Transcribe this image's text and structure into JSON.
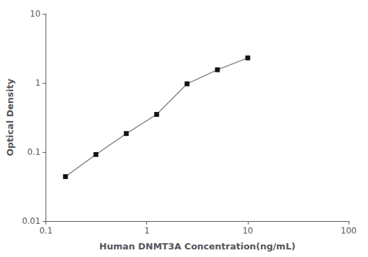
{
  "chart_data": {
    "type": "line",
    "x": [
      0.156,
      0.3125,
      0.625,
      1.25,
      2.5,
      5.0,
      10.0
    ],
    "values": [
      0.044,
      0.092,
      0.185,
      0.35,
      0.97,
      1.55,
      2.3
    ],
    "xlabel": "Human DNMT3A Concentration(ng/mL)",
    "ylabel": "Optical Density",
    "xlim": [
      0.1,
      100
    ],
    "ylim": [
      0.01,
      10
    ],
    "xticks": [
      0.1,
      1,
      10,
      100
    ],
    "yticks": [
      0.01,
      0.1,
      1,
      10
    ],
    "log": true,
    "grid": false,
    "color": "#888888",
    "colors": [
      "#111111",
      "#111111",
      "#111111",
      "#111111",
      "#111111",
      "#111111",
      "#111111"
    ],
    "marker": "square"
  }
}
